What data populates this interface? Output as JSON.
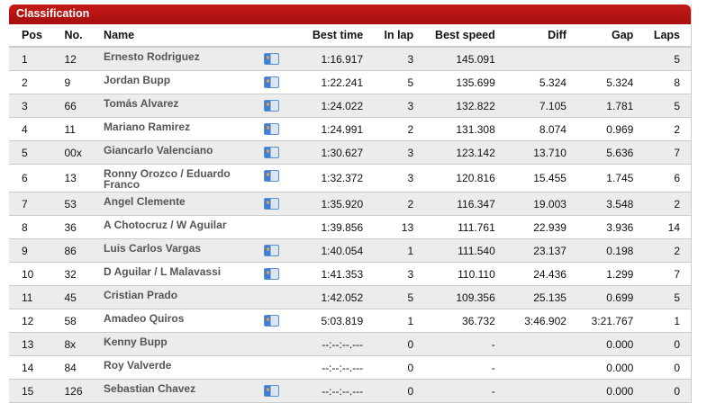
{
  "title": "Classification",
  "columns": [
    "Pos",
    "No.",
    "Name",
    "Best time",
    "In lap",
    "Best speed",
    "Diff",
    "Gap",
    "Laps"
  ],
  "rows": [
    {
      "pos": "1",
      "no": "12",
      "name": "Ernesto Rodriguez",
      "icon": true,
      "best": "1:16.917",
      "inlap": "3",
      "speed": "145.091",
      "diff": "",
      "gap": "",
      "laps": "5"
    },
    {
      "pos": "2",
      "no": "9",
      "name": "Jordan Bupp",
      "icon": true,
      "best": "1:22.241",
      "inlap": "5",
      "speed": "135.699",
      "diff": "5.324",
      "gap": "5.324",
      "laps": "8"
    },
    {
      "pos": "3",
      "no": "66",
      "name": "Tomás Alvarez",
      "icon": true,
      "best": "1:24.022",
      "inlap": "3",
      "speed": "132.822",
      "diff": "7.105",
      "gap": "1.781",
      "laps": "5"
    },
    {
      "pos": "4",
      "no": "11",
      "name": "Mariano Ramirez",
      "icon": true,
      "best": "1:24.991",
      "inlap": "2",
      "speed": "131.308",
      "diff": "8.074",
      "gap": "0.969",
      "laps": "2"
    },
    {
      "pos": "5",
      "no": "00x",
      "name": "Giancarlo Valenciano",
      "icon": true,
      "best": "1:30.627",
      "inlap": "3",
      "speed": "123.142",
      "diff": "13.710",
      "gap": "5.636",
      "laps": "7"
    },
    {
      "pos": "6",
      "no": "13",
      "name": "Ronny Orozco / Eduardo Franco",
      "icon": true,
      "best": "1:32.372",
      "inlap": "3",
      "speed": "120.816",
      "diff": "15.455",
      "gap": "1.745",
      "laps": "6"
    },
    {
      "pos": "7",
      "no": "53",
      "name": "Angel Clemente",
      "icon": true,
      "best": "1:35.920",
      "inlap": "2",
      "speed": "116.347",
      "diff": "19.003",
      "gap": "3.548",
      "laps": "2"
    },
    {
      "pos": "8",
      "no": "36",
      "name": "A Chotocruz / W Aguilar",
      "icon": false,
      "best": "1:39.856",
      "inlap": "13",
      "speed": "111.761",
      "diff": "22.939",
      "gap": "3.936",
      "laps": "14"
    },
    {
      "pos": "9",
      "no": "86",
      "name": "Luis Carlos Vargas",
      "icon": true,
      "best": "1:40.054",
      "inlap": "1",
      "speed": "111.540",
      "diff": "23.137",
      "gap": "0.198",
      "laps": "2"
    },
    {
      "pos": "10",
      "no": "32",
      "name": "D Aguilar / L Malavassi",
      "icon": true,
      "best": "1:41.353",
      "inlap": "3",
      "speed": "110.110",
      "diff": "24.436",
      "gap": "1.299",
      "laps": "7"
    },
    {
      "pos": "11",
      "no": "45",
      "name": "Cristian Prado",
      "icon": false,
      "best": "1:42.052",
      "inlap": "5",
      "speed": "109.356",
      "diff": "25.135",
      "gap": "0.699",
      "laps": "5"
    },
    {
      "pos": "12",
      "no": "58",
      "name": "Amadeo Quiros",
      "icon": true,
      "best": "5:03.819",
      "inlap": "1",
      "speed": "36.732",
      "diff": "3:46.902",
      "gap": "3:21.767",
      "laps": "1"
    },
    {
      "pos": "13",
      "no": "8x",
      "name": "Kenny Bupp",
      "icon": false,
      "best": "--:--:--.---",
      "inlap": "0",
      "speed": "-",
      "diff": "",
      "gap": "0.000",
      "laps": "0"
    },
    {
      "pos": "14",
      "no": "84",
      "name": "Roy Valverde",
      "icon": false,
      "best": "--:--:--.---",
      "inlap": "0",
      "speed": "-",
      "diff": "",
      "gap": "0.000",
      "laps": "0"
    },
    {
      "pos": "15",
      "no": "126",
      "name": "Sebastian Chavez",
      "icon": true,
      "best": "--:--:--.---",
      "inlap": "0",
      "speed": "-",
      "diff": "",
      "gap": "0.000",
      "laps": "0"
    }
  ]
}
